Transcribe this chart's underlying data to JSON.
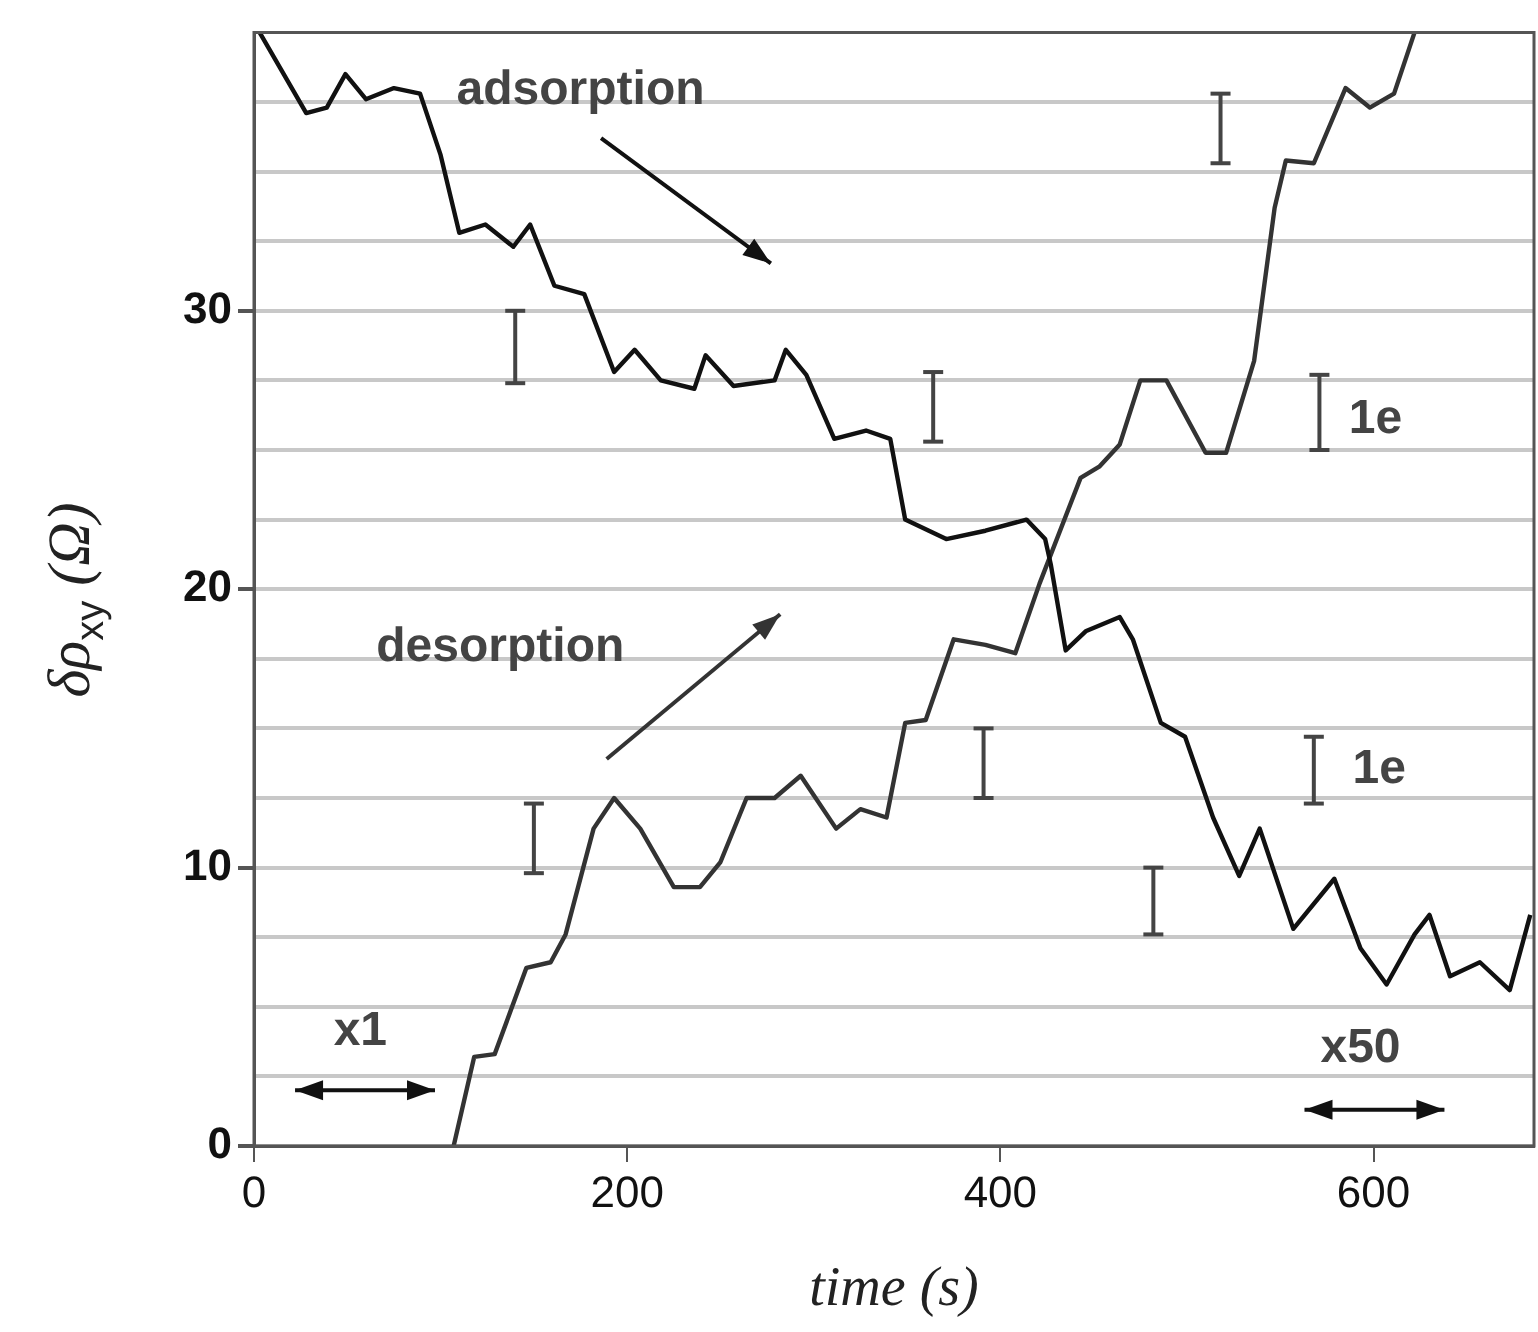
{
  "chart_data": {
    "type": "line",
    "xlabel": "time (s)",
    "ylabel": "δρ$_{xy}$ (Ω)",
    "xlim": [
      0,
      686
    ],
    "ylim": [
      0,
      40
    ],
    "xticks": [
      0,
      200,
      400,
      600
    ],
    "yticks": [
      0,
      {
        "value": 2.5,
        "label": null
      },
      {
        "value": 5,
        "label": null
      },
      {
        "value": 7.5,
        "label": null
      },
      10,
      {
        "value": 12.5,
        "label": null
      },
      {
        "value": 15,
        "label": null
      },
      {
        "value": 17.5,
        "label": null
      },
      20,
      {
        "value": 22.5,
        "label": null
      },
      {
        "value": 25,
        "label": null
      },
      {
        "value": 27.5,
        "label": null
      },
      30,
      {
        "value": 32.5,
        "label": null
      },
      {
        "value": 35,
        "label": null
      },
      {
        "value": 37.5,
        "label": null
      }
    ],
    "grid": "y",
    "marker": "none",
    "line_style": "solid",
    "series": [
      {
        "color": "#111111",
        "x": [
          3,
          28,
          39,
          49,
          60,
          75,
          89,
          100,
          110,
          124,
          139,
          148,
          161,
          177,
          193,
          204,
          218,
          236,
          242,
          257,
          279,
          285,
          296,
          311,
          328,
          341,
          349,
          371,
          392,
          414,
          424,
          427,
          435,
          446,
          464,
          471,
          486,
          499,
          514,
          528,
          539,
          557,
          579,
          593,
          607,
          622,
          630,
          641,
          657,
          673,
          684
        ],
        "values": [
          40,
          37.1,
          37.3,
          38.5,
          37.6,
          38.0,
          37.8,
          35.6,
          32.8,
          33.1,
          32.3,
          33.1,
          30.9,
          30.6,
          27.8,
          28.6,
          27.5,
          27.2,
          28.4,
          27.3,
          27.5,
          28.6,
          27.7,
          25.4,
          25.7,
          25.4,
          22.5,
          21.8,
          22.1,
          22.5,
          21.8,
          20.9,
          17.8,
          18.5,
          19.0,
          18.2,
          15.2,
          14.7,
          11.8,
          9.7,
          11.4,
          7.8,
          9.6,
          7.1,
          5.8,
          7.6,
          8.3,
          6.1,
          6.6,
          5.6,
          8.3
        ]
      },
      {
        "color": "#333333",
        "x": [
          107,
          118,
          129,
          146,
          159,
          167,
          182,
          193,
          207,
          225,
          239,
          250,
          264,
          279,
          293,
          312,
          325,
          339,
          349,
          360,
          375,
          392,
          408,
          421,
          443,
          453,
          464,
          475,
          489,
          510,
          521,
          536,
          547,
          553,
          568,
          585,
          598,
          611,
          622
        ],
        "values": [
          0,
          3.2,
          3.3,
          6.4,
          6.6,
          7.6,
          11.4,
          12.5,
          11.4,
          9.3,
          9.3,
          10.2,
          12.5,
          12.5,
          13.3,
          11.4,
          12.1,
          11.8,
          15.2,
          15.3,
          18.2,
          18.0,
          17.7,
          20.2,
          24.0,
          24.4,
          25.2,
          27.5,
          27.5,
          24.9,
          24.9,
          28.2,
          33.7,
          35.4,
          35.3,
          38.0,
          37.3,
          37.8,
          40.0
        ]
      }
    ],
    "annotations": [
      "adsorption",
      "desorption",
      "x1",
      "x50",
      "1e",
      "1e"
    ]
  }
}
